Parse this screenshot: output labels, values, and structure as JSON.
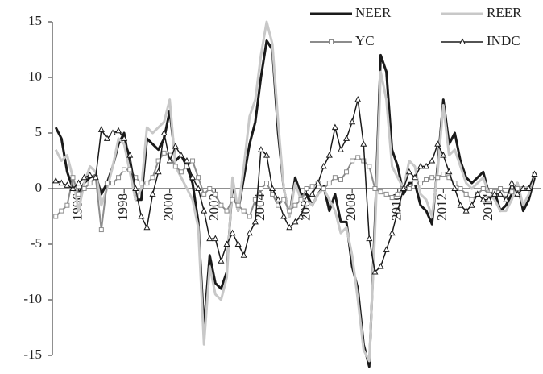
{
  "chart_data": {
    "type": "line",
    "x": [
      1995,
      1995.25,
      1995.5,
      1995.75,
      1996,
      1996.25,
      1996.5,
      1996.75,
      1997,
      1997.25,
      1997.5,
      1997.75,
      1998,
      1998.25,
      1998.5,
      1998.75,
      1999,
      1999.25,
      1999.5,
      1999.75,
      2000,
      2000.25,
      2000.5,
      2000.75,
      2001,
      2001.25,
      2001.5,
      2001.75,
      2002,
      2002.25,
      2002.5,
      2002.75,
      2003,
      2003.25,
      2003.5,
      2003.75,
      2004,
      2004.25,
      2004.5,
      2004.75,
      2005,
      2005.25,
      2005.5,
      2005.75,
      2006,
      2006.25,
      2006.5,
      2006.75,
      2007,
      2007.25,
      2007.5,
      2007.75,
      2008,
      2008.25,
      2008.5,
      2008.75,
      2009,
      2009.25,
      2009.5,
      2009.75,
      2010,
      2010.25,
      2010.5,
      2010.75,
      2011,
      2011.25,
      2011.5,
      2011.75,
      2012,
      2012.25,
      2012.5,
      2012.75,
      2013,
      2013.25,
      2013.5,
      2013.75,
      2014,
      2014.25,
      2014.5,
      2014.75,
      2015,
      2015.25,
      2015.5,
      2015.75,
      2016
    ],
    "series": [
      {
        "name": "NEER",
        "color": "#1a1a1a",
        "width": 3,
        "marker": "none",
        "values": [
          5.5,
          4.5,
          1.5,
          0,
          -0.5,
          0.5,
          1,
          1.2,
          -0.5,
          0.5,
          2,
          4,
          5,
          2,
          -1,
          -1,
          4.5,
          4,
          3.5,
          4.5,
          7,
          2.5,
          3,
          2,
          0.5,
          -3,
          -12.5,
          -6,
          -8.5,
          -9,
          -7.5,
          0.5,
          -2,
          1,
          4,
          6,
          10,
          13.3,
          12.5,
          5,
          0,
          -2.5,
          1,
          -0.5,
          -0.5,
          -1.5,
          -0.5,
          0.2,
          -2,
          -0.5,
          -3,
          -3,
          -7,
          -9,
          -14,
          -16,
          -3,
          12,
          10.5,
          3.5,
          2,
          -0.5,
          0.5,
          0.5,
          -1.5,
          -2,
          -3.2,
          2,
          8,
          4,
          5,
          2.5,
          1,
          0.5,
          1,
          1.5,
          -0.5,
          -0.3,
          -2,
          -1.5,
          -0.5,
          0.5,
          -2,
          -1,
          1
        ]
      },
      {
        "name": "REER",
        "color": "#c8c8c8",
        "width": 3,
        "marker": "none",
        "values": [
          3.5,
          2.5,
          3,
          1,
          -2,
          0.5,
          2,
          1.5,
          -1.5,
          0,
          2,
          4.5,
          4,
          1.5,
          -1,
          0,
          5.5,
          5,
          5.5,
          6,
          8,
          2,
          1,
          0,
          -1,
          -3.5,
          -14,
          -7,
          -9.5,
          -10,
          -8,
          1,
          -2,
          2,
          6.5,
          8,
          12,
          15,
          13,
          6,
          0,
          -2.5,
          0.5,
          -1,
          -1,
          -1.5,
          -0.5,
          0,
          -1,
          -2,
          -4,
          -3.5,
          -6,
          -10,
          -14.5,
          -15.5,
          -4,
          10.5,
          8,
          2,
          1,
          0,
          2.5,
          2,
          -0.5,
          -1,
          -2.5,
          1.5,
          7.5,
          3,
          3.5,
          2,
          0.5,
          0,
          0.5,
          1,
          -0.5,
          -1,
          -2,
          -2,
          -1,
          0.5,
          -1.5,
          -0.5,
          1.5
        ]
      },
      {
        "name": "YC",
        "color": "#8c8c8c",
        "width": 2,
        "marker": "square",
        "values": [
          -2.5,
          -2,
          -1.5,
          1,
          -0.5,
          0,
          0.5,
          1,
          -3.7,
          0.5,
          0.5,
          1,
          1.7,
          1.7,
          1,
          0.5,
          0.5,
          1,
          2.5,
          3.2,
          3,
          2,
          1.5,
          2,
          2.5,
          1,
          -0.5,
          0,
          -0.5,
          -1.5,
          -2,
          -1,
          -1.5,
          -2,
          -2.5,
          -1,
          0,
          0.5,
          -0.5,
          -1.5,
          -1,
          -2,
          -1.5,
          -1,
          0,
          0.2,
          0.5,
          0,
          0.5,
          1,
          0.8,
          1.5,
          2.5,
          2.8,
          2.5,
          2,
          0,
          -0.3,
          -0.5,
          -0.8,
          -0.5,
          0,
          0,
          0.5,
          0.5,
          0.8,
          1,
          1,
          1.3,
          1,
          0.5,
          0,
          -0.5,
          -1,
          -0.5,
          0,
          -0.5,
          -0.3,
          0,
          -0.5,
          -0.3,
          0,
          0,
          0,
          1.3
        ]
      },
      {
        "name": "INDC",
        "color": "#1a1a1a",
        "width": 1.5,
        "marker": "triangle",
        "values": [
          0.7,
          0.5,
          0.3,
          0,
          0.5,
          1,
          1.2,
          1,
          5.3,
          4.5,
          5,
          5.2,
          4.5,
          3,
          0,
          -2.5,
          -3.5,
          -0.5,
          1.5,
          5,
          2.5,
          3.8,
          3,
          2.5,
          1,
          0,
          -2,
          -4.5,
          -4.5,
          -6.5,
          -5,
          -4,
          -5,
          -6,
          -4,
          -3,
          3.5,
          3,
          0,
          -1,
          -2.5,
          -3.5,
          -3,
          -2.5,
          -1,
          -0.5,
          0.5,
          2,
          3,
          5.5,
          3.5,
          4.5,
          6,
          8,
          4,
          -4.5,
          -7.5,
          -7,
          -5.5,
          -4,
          -2,
          0,
          1.5,
          1,
          2,
          2,
          2.5,
          4,
          3,
          1.5,
          0,
          -1.5,
          -2,
          -1.5,
          -0.5,
          -1,
          -1,
          -0.5,
          -0.5,
          -1,
          0.5,
          -0.5,
          0,
          0,
          1.3
        ]
      }
    ],
    "xlim": [
      1994.85,
      2016.3
    ],
    "xticks": [
      1996,
      1998,
      2000,
      2002,
      2004,
      2006,
      2008,
      2010,
      2012,
      2014
    ],
    "ylim": [
      -15,
      15
    ],
    "yticks": [
      -15,
      -10,
      -5,
      0,
      5,
      10,
      15
    ]
  }
}
